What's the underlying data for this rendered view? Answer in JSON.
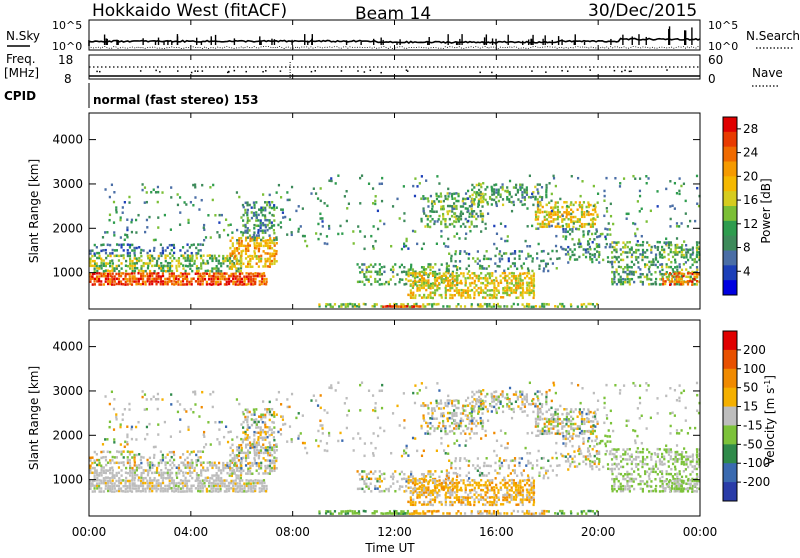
{
  "header": {
    "site": "Hokkaido West (fitACF)",
    "beam": "Beam 14",
    "date": "30/Dec/2015"
  },
  "top_panel": {
    "left_label": "N.Sky",
    "right_label": "N.Search",
    "left_ticks": [
      "10^5",
      "10^0"
    ],
    "right_ticks": [
      "10^5",
      "10^0"
    ]
  },
  "freq_panel": {
    "label_line1": "Freq.",
    "label_line2": "[MHz]",
    "left_ticks": [
      "18",
      "8"
    ],
    "right_label": "Nave",
    "right_ticks": [
      "60",
      "0"
    ]
  },
  "cpid": {
    "label": "CPID",
    "text": "normal (fast stereo) 153"
  },
  "chart_data": [
    {
      "type": "heatmap",
      "title": "",
      "ylabel": "Slant Range [km]",
      "xlabel": "",
      "ylim": [
        180,
        4600
      ],
      "yticks": [
        "1000",
        "2000",
        "3000",
        "4000"
      ],
      "colorbar": {
        "label": "Power [dB]",
        "ticks": [
          "4",
          "8",
          "12",
          "16",
          "20",
          "24",
          "28"
        ],
        "range": [
          0,
          30
        ],
        "colors": [
          "#0000e0",
          "#1c3fb8",
          "#4a6ea6",
          "#3d8a5a",
          "#2e9c4e",
          "#7bbf36",
          "#d6cc1f",
          "#f5b800",
          "#f59a00",
          "#ef6a00",
          "#e83a00",
          "#e00000"
        ]
      }
    },
    {
      "type": "heatmap",
      "title": "",
      "ylabel": "Slant Range [km]",
      "xlabel": "Time UT",
      "xticks": [
        "00:00",
        "04:00",
        "08:00",
        "12:00",
        "16:00",
        "20:00",
        "00:00"
      ],
      "ylim": [
        180,
        4600
      ],
      "yticks": [
        "1000",
        "2000",
        "3000",
        "4000"
      ],
      "colorbar": {
        "label": "Velocity [m s-1]",
        "ticks": [
          "200",
          "100",
          "50",
          "15",
          "-15",
          "-50",
          "-100",
          "-200"
        ],
        "colors": [
          "#2a3ca8",
          "#3a6ab0",
          "#2f8a4a",
          "#7cc23a",
          "#bdbdbd",
          "#f5b000",
          "#f08a00",
          "#e85000",
          "#e00000"
        ]
      }
    }
  ]
}
